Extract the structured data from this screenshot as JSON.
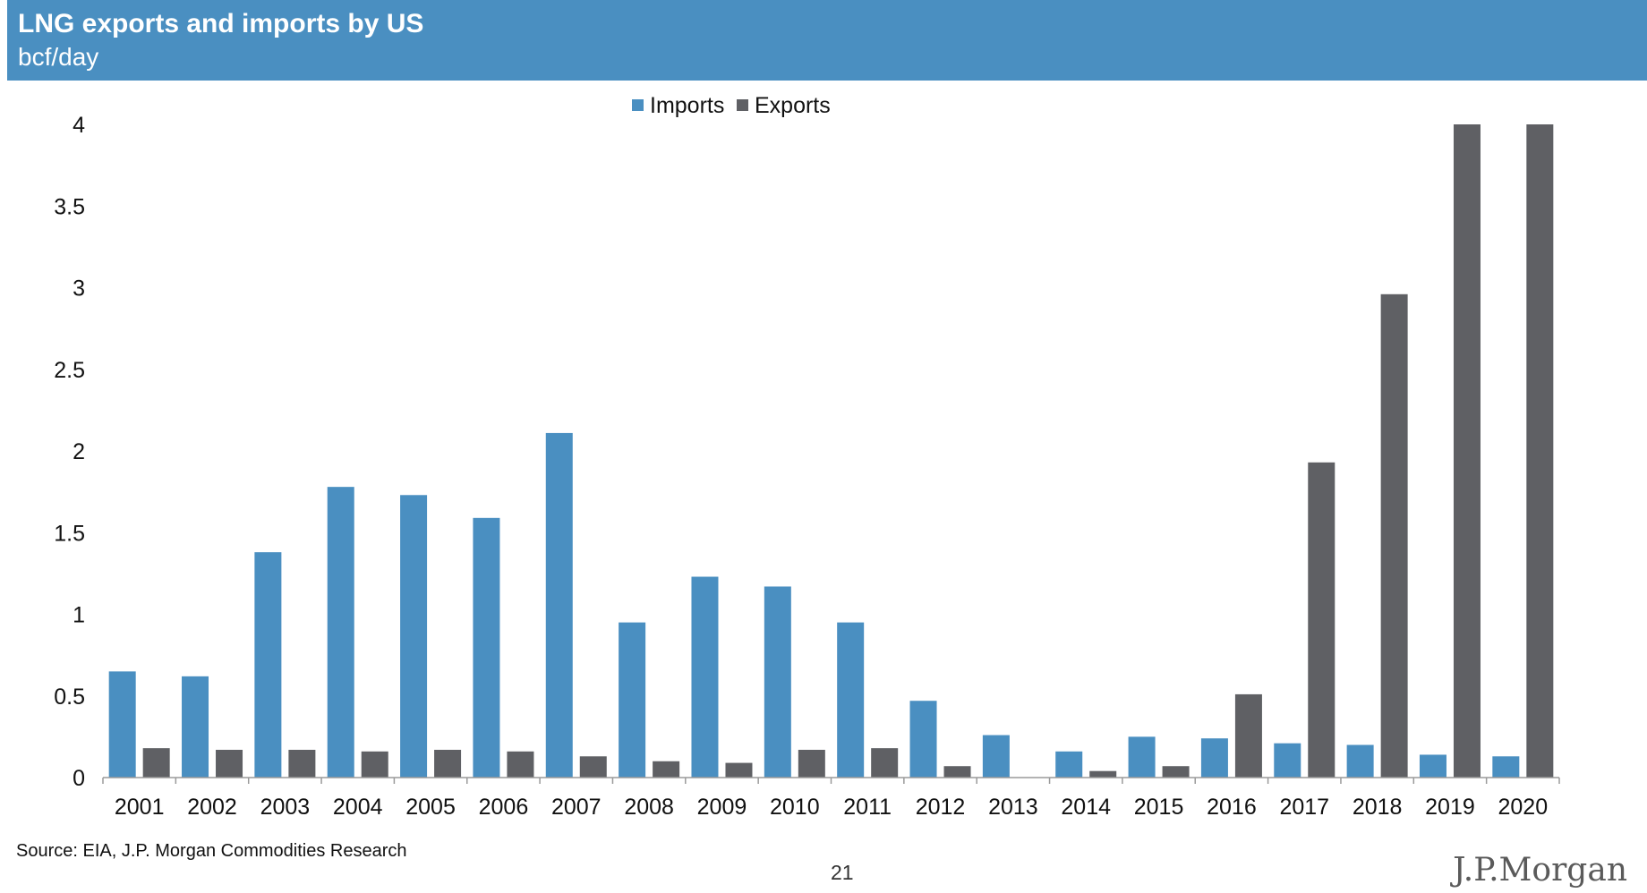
{
  "header": {
    "title": "LNG exports and imports by US",
    "subtitle": "bcf/day"
  },
  "footer": {
    "source": "Source: EIA, J.P. Morgan Commodities Research",
    "page_number": "21",
    "logo": "J.P.Morgan"
  },
  "colors": {
    "header_bg": "#4a8fc1",
    "imports": "#4a8fc1",
    "exports": "#5f6064"
  },
  "chart_data": {
    "type": "bar",
    "title": "LNG exports and imports by US",
    "subtitle": "bcf/day",
    "categories": [
      "2001",
      "2002",
      "2003",
      "2004",
      "2005",
      "2006",
      "2007",
      "2008",
      "2009",
      "2010",
      "2011",
      "2012",
      "2013",
      "2014",
      "2015",
      "2016",
      "2017",
      "2018",
      "2019",
      "2020"
    ],
    "series": [
      {
        "name": "Imports",
        "color": "#4a8fc1",
        "values": [
          0.65,
          0.62,
          1.38,
          1.78,
          1.73,
          1.59,
          2.11,
          0.95,
          1.23,
          1.17,
          0.95,
          0.47,
          0.26,
          0.16,
          0.25,
          0.24,
          0.21,
          0.2,
          0.14,
          0.13
        ]
      },
      {
        "name": "Exports",
        "color": "#5f6064",
        "values": [
          0.18,
          0.17,
          0.17,
          0.16,
          0.17,
          0.16,
          0.13,
          0.1,
          0.09,
          0.17,
          0.18,
          0.07,
          0.0,
          0.04,
          0.07,
          0.51,
          1.93,
          2.96,
          4.0,
          4.0
        ]
      }
    ],
    "y_ticks": [
      "0",
      "0.5",
      "1",
      "1.5",
      "2",
      "2.5",
      "3",
      "3.5",
      "4"
    ],
    "xlabel": "",
    "ylabel": "",
    "ylim": [
      0,
      4
    ],
    "grid": false,
    "legend": "top-center"
  }
}
